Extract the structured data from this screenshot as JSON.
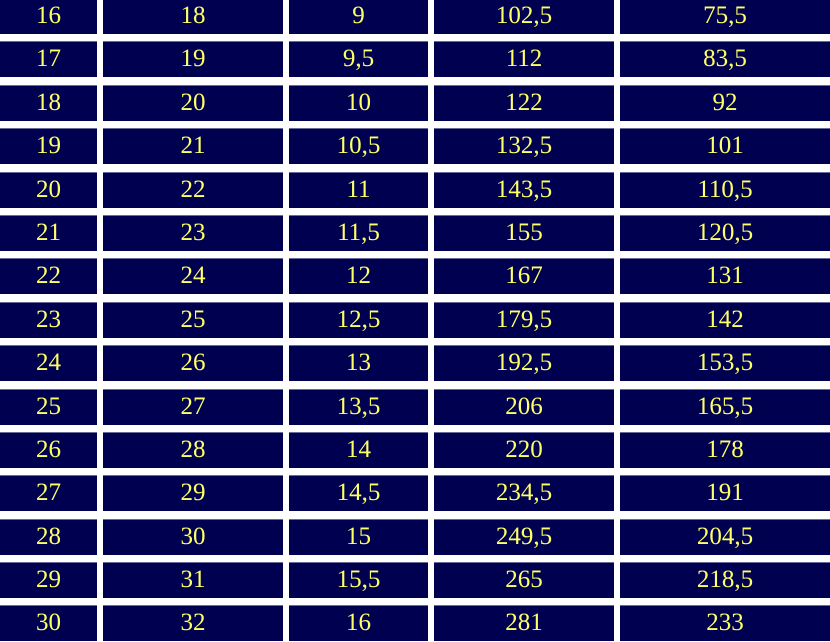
{
  "table": {
    "rows": [
      [
        "16",
        "18",
        "9",
        "102,5",
        "75,5"
      ],
      [
        "17",
        "19",
        "9,5",
        "112",
        "83,5"
      ],
      [
        "18",
        "20",
        "10",
        "122",
        "92"
      ],
      [
        "19",
        "21",
        "10,5",
        "132,5",
        "101"
      ],
      [
        "20",
        "22",
        "11",
        "143,5",
        "110,5"
      ],
      [
        "21",
        "23",
        "11,5",
        "155",
        "120,5"
      ],
      [
        "22",
        "24",
        "12",
        "167",
        "131"
      ],
      [
        "23",
        "25",
        "12,5",
        "179,5",
        "142"
      ],
      [
        "24",
        "26",
        "13",
        "192,5",
        "153,5"
      ],
      [
        "25",
        "27",
        "13,5",
        "206",
        "165,5"
      ],
      [
        "26",
        "28",
        "14",
        "220",
        "178"
      ],
      [
        "27",
        "29",
        "14,5",
        "234,5",
        "191"
      ],
      [
        "28",
        "30",
        "15",
        "249,5",
        "204,5"
      ],
      [
        "29",
        "31",
        "15,5",
        "265",
        "218,5"
      ],
      [
        "30",
        "32",
        "16",
        "281",
        "233"
      ]
    ]
  },
  "colors": {
    "cell_bg": "#000050",
    "text": "#ffff66",
    "background": "#ffffff"
  }
}
